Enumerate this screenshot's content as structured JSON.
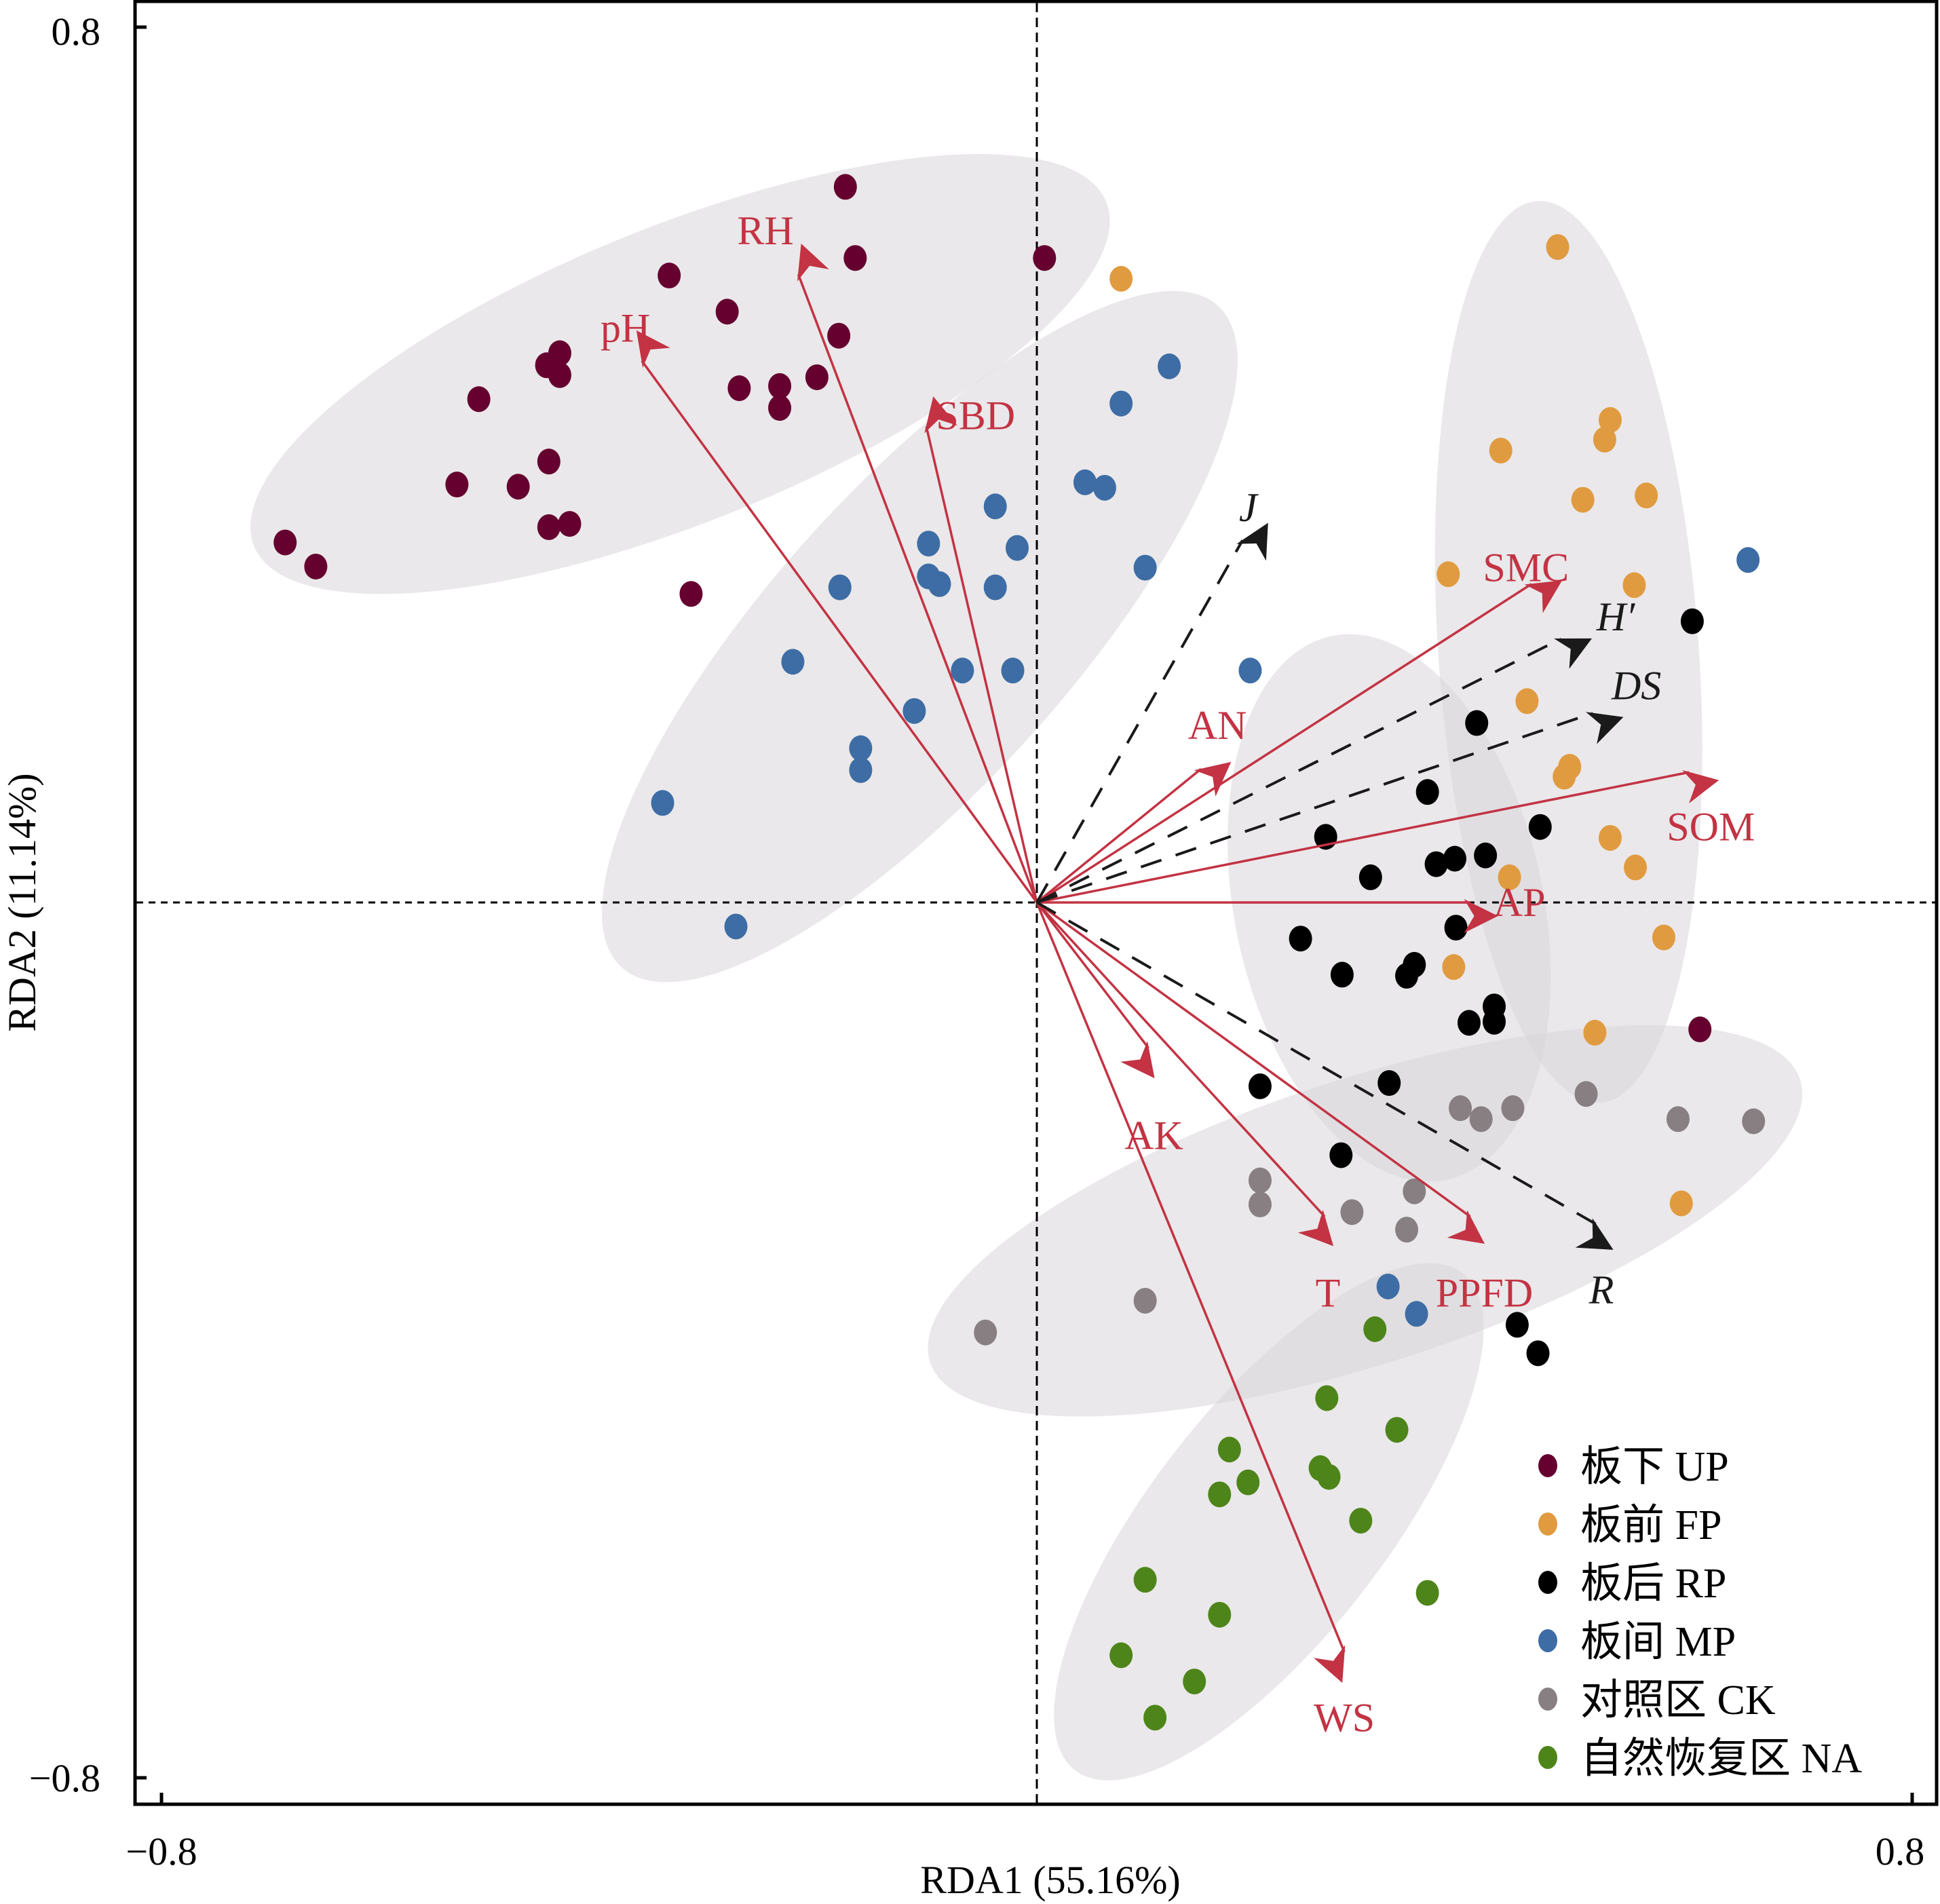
{
  "chart_data": {
    "type": "scatter",
    "subtype": "RDA biplot",
    "title": "",
    "xlabel": "RDA1 (55.16%)",
    "ylabel": "RDA2 (11.14%)",
    "xlim": [
      -0.8,
      0.8
    ],
    "ylim": [
      -0.8,
      0.8
    ],
    "x_ticks": [
      "−0.8",
      "0.8"
    ],
    "y_ticks": [
      "0.8",
      "−0.8"
    ],
    "x_tick_values": [
      -0.8,
      0.8
    ],
    "y_tick_values": [
      0.8,
      -0.8
    ],
    "grid": false,
    "reference_lines": "dashed lines at x=0 and y=0",
    "legend_position": "bottom-right",
    "colors": {
      "env_vector": "#c33343",
      "diversity_vector": "#000000",
      "ellipse_fill": "#d8d5d8"
    },
    "groups": [
      {
        "name": "板下 UP",
        "color": "#65002f",
        "ellipse": {
          "cx": -0.326,
          "cy": 0.483,
          "rx": 0.42,
          "ry": 0.135,
          "angle": 22
        },
        "points": [
          [
            -0.175,
            0.654
          ],
          [
            -0.166,
            0.589
          ],
          [
            0.007,
            0.589
          ],
          [
            -0.336,
            0.573
          ],
          [
            -0.283,
            0.54
          ],
          [
            -0.181,
            0.518
          ],
          [
            -0.436,
            0.502
          ],
          [
            -0.448,
            0.491
          ],
          [
            -0.436,
            0.482
          ],
          [
            -0.272,
            0.47
          ],
          [
            -0.235,
            0.472
          ],
          [
            -0.201,
            0.48
          ],
          [
            -0.235,
            0.452
          ],
          [
            -0.51,
            0.46
          ],
          [
            -0.446,
            0.403
          ],
          [
            -0.53,
            0.382
          ],
          [
            -0.474,
            0.38
          ],
          [
            -0.446,
            0.343
          ],
          [
            -0.427,
            0.346
          ],
          [
            -0.687,
            0.329
          ],
          [
            -0.659,
            0.307
          ],
          [
            -0.316,
            0.282
          ],
          [
            0.606,
            -0.116
          ]
        ]
      },
      {
        "name": "板前 FP",
        "color": "#e09b40",
        "ellipse": {
          "cx": 0.486,
          "cy": 0.229,
          "rx": 0.119,
          "ry": 0.413,
          "angle": 4
        },
        "points": [
          [
            0.077,
            0.57
          ],
          [
            0.476,
            0.599
          ],
          [
            0.424,
            0.413
          ],
          [
            0.524,
            0.441
          ],
          [
            0.519,
            0.423
          ],
          [
            0.499,
            0.368
          ],
          [
            0.557,
            0.372
          ],
          [
            0.546,
            0.29
          ],
          [
            0.376,
            0.3
          ],
          [
            0.448,
            0.184
          ],
          [
            0.487,
            0.124
          ],
          [
            0.482,
            0.115
          ],
          [
            0.524,
            0.059
          ],
          [
            0.547,
            0.032
          ],
          [
            0.432,
            0.023
          ],
          [
            0.381,
            -0.059
          ],
          [
            0.573,
            -0.032
          ],
          [
            0.51,
            -0.119
          ],
          [
            0.589,
            -0.275
          ]
        ]
      },
      {
        "name": "板后 RP",
        "color": "#000000",
        "ellipse": {
          "cx": 0.322,
          "cy": -0.005,
          "rx": 0.141,
          "ry": 0.254,
          "angle": 12
        },
        "points": [
          [
            0.599,
            0.257
          ],
          [
            0.402,
            0.164
          ],
          [
            0.357,
            0.101
          ],
          [
            0.46,
            0.069
          ],
          [
            0.264,
            0.06
          ],
          [
            0.382,
            0.04
          ],
          [
            0.365,
            0.035
          ],
          [
            0.41,
            0.043
          ],
          [
            0.305,
            0.023
          ],
          [
            0.383,
            -0.023
          ],
          [
            0.241,
            -0.033
          ],
          [
            0.279,
            -0.066
          ],
          [
            0.345,
            -0.057
          ],
          [
            0.338,
            -0.067
          ],
          [
            0.418,
            -0.095
          ],
          [
            0.418,
            -0.109
          ],
          [
            0.395,
            -0.11
          ],
          [
            0.322,
            -0.165
          ],
          [
            0.204,
            -0.168
          ],
          [
            0.278,
            -0.231
          ],
          [
            0.439,
            -0.386
          ],
          [
            0.458,
            -0.412
          ]
        ]
      },
      {
        "name": "板间 MP",
        "color": "#3d6da4",
        "ellipse": {
          "cx": -0.107,
          "cy": 0.243,
          "rx": 0.407,
          "ry": 0.136,
          "angle": 48
        },
        "points": [
          [
            0.121,
            0.49
          ],
          [
            0.077,
            0.456
          ],
          [
            0.044,
            0.384
          ],
          [
            0.062,
            0.379
          ],
          [
            -0.038,
            0.362
          ],
          [
            -0.099,
            0.328
          ],
          [
            -0.018,
            0.324
          ],
          [
            0.099,
            0.306
          ],
          [
            -0.099,
            0.298
          ],
          [
            -0.089,
            0.291
          ],
          [
            -0.038,
            0.288
          ],
          [
            -0.18,
            0.288
          ],
          [
            -0.223,
            0.22
          ],
          [
            -0.068,
            0.212
          ],
          [
            -0.022,
            0.212
          ],
          [
            0.195,
            0.212
          ],
          [
            -0.112,
            0.175
          ],
          [
            -0.161,
            0.141
          ],
          [
            -0.161,
            0.121
          ],
          [
            -0.342,
            0.091
          ],
          [
            -0.275,
            -0.022
          ],
          [
            0.65,
            0.313
          ],
          [
            0.321,
            -0.351
          ],
          [
            0.347,
            -0.376
          ]
        ]
      },
      {
        "name": "对照区 CK",
        "color": "#877f82",
        "ellipse": {
          "cx": 0.3,
          "cy": -0.291,
          "rx": 0.418,
          "ry": 0.13,
          "angle": 18
        },
        "points": [
          [
            0.387,
            -0.188
          ],
          [
            0.435,
            -0.188
          ],
          [
            0.502,
            -0.175
          ],
          [
            0.406,
            -0.198
          ],
          [
            0.586,
            -0.198
          ],
          [
            0.655,
            -0.2
          ],
          [
            0.204,
            -0.254
          ],
          [
            0.204,
            -0.276
          ],
          [
            0.345,
            -0.264
          ],
          [
            0.288,
            -0.283
          ],
          [
            0.338,
            -0.299
          ],
          [
            0.099,
            -0.364
          ],
          [
            -0.047,
            -0.393
          ]
        ]
      },
      {
        "name": "自然恢复区 NA",
        "color": "#4e851a",
        "ellipse": {
          "cx": 0.212,
          "cy": -0.566,
          "rx": 0.288,
          "ry": 0.107,
          "angle": 52
        },
        "points": [
          [
            0.309,
            -0.39
          ],
          [
            0.265,
            -0.453
          ],
          [
            0.329,
            -0.482
          ],
          [
            0.176,
            -0.5
          ],
          [
            0.259,
            -0.517
          ],
          [
            0.267,
            -0.525
          ],
          [
            0.193,
            -0.53
          ],
          [
            0.167,
            -0.541
          ],
          [
            0.296,
            -0.565
          ],
          [
            0.357,
            -0.631
          ],
          [
            0.099,
            -0.619
          ],
          [
            0.167,
            -0.651
          ],
          [
            0.077,
            -0.688
          ],
          [
            0.144,
            -0.712
          ],
          [
            0.108,
            -0.745
          ]
        ]
      }
    ],
    "env_vectors": [
      {
        "name": "pH",
        "x": -0.361,
        "y": 0.495,
        "label_dx": -0.015,
        "label_dy": 0.03
      },
      {
        "name": "RH",
        "x": -0.218,
        "y": 0.574,
        "label_dx": -0.03,
        "label_dy": 0.04
      },
      {
        "name": "SBD",
        "x": -0.101,
        "y": 0.435,
        "label_dx": 0.045,
        "label_dy": 0.01
      },
      {
        "name": "AN",
        "x": 0.15,
        "y": 0.122,
        "label_dx": 0.015,
        "label_dy": 0.04
      },
      {
        "name": "SMC",
        "x": 0.452,
        "y": 0.291,
        "label_dx": -0.005,
        "label_dy": 0.015
      },
      {
        "name": "SOM",
        "x": 0.596,
        "y": 0.119,
        "label_dx": 0.02,
        "label_dy": -0.05
      },
      {
        "name": "AP",
        "x": 0.396,
        "y": 0.0,
        "label_dx": 0.045,
        "label_dy": 0.0
      },
      {
        "name": "AK",
        "x": 0.102,
        "y": -0.133,
        "label_dx": 0.005,
        "label_dy": -0.08
      },
      {
        "name": "T",
        "x": 0.263,
        "y": -0.287,
        "label_dx": 0.003,
        "label_dy": -0.07
      },
      {
        "name": "PPFD",
        "x": 0.396,
        "y": -0.287,
        "label_dx": 0.013,
        "label_dy": -0.07
      },
      {
        "name": "WS",
        "x": 0.281,
        "y": -0.685,
        "label_dx": 0.0,
        "label_dy": -0.06
      }
    ],
    "diversity_vectors": [
      {
        "name": "J",
        "x": 0.188,
        "y": 0.331,
        "label_dx": 0.005,
        "label_dy": 0.03
      },
      {
        "name": "H′",
        "x": 0.479,
        "y": 0.241,
        "label_dx": 0.05,
        "label_dy": 0.02
      },
      {
        "name": "DS",
        "x": 0.508,
        "y": 0.173,
        "label_dx": 0.04,
        "label_dy": 0.025
      },
      {
        "name": "R",
        "x": 0.511,
        "y": -0.294,
        "label_dx": 0.005,
        "label_dy": -0.06
      }
    ]
  }
}
